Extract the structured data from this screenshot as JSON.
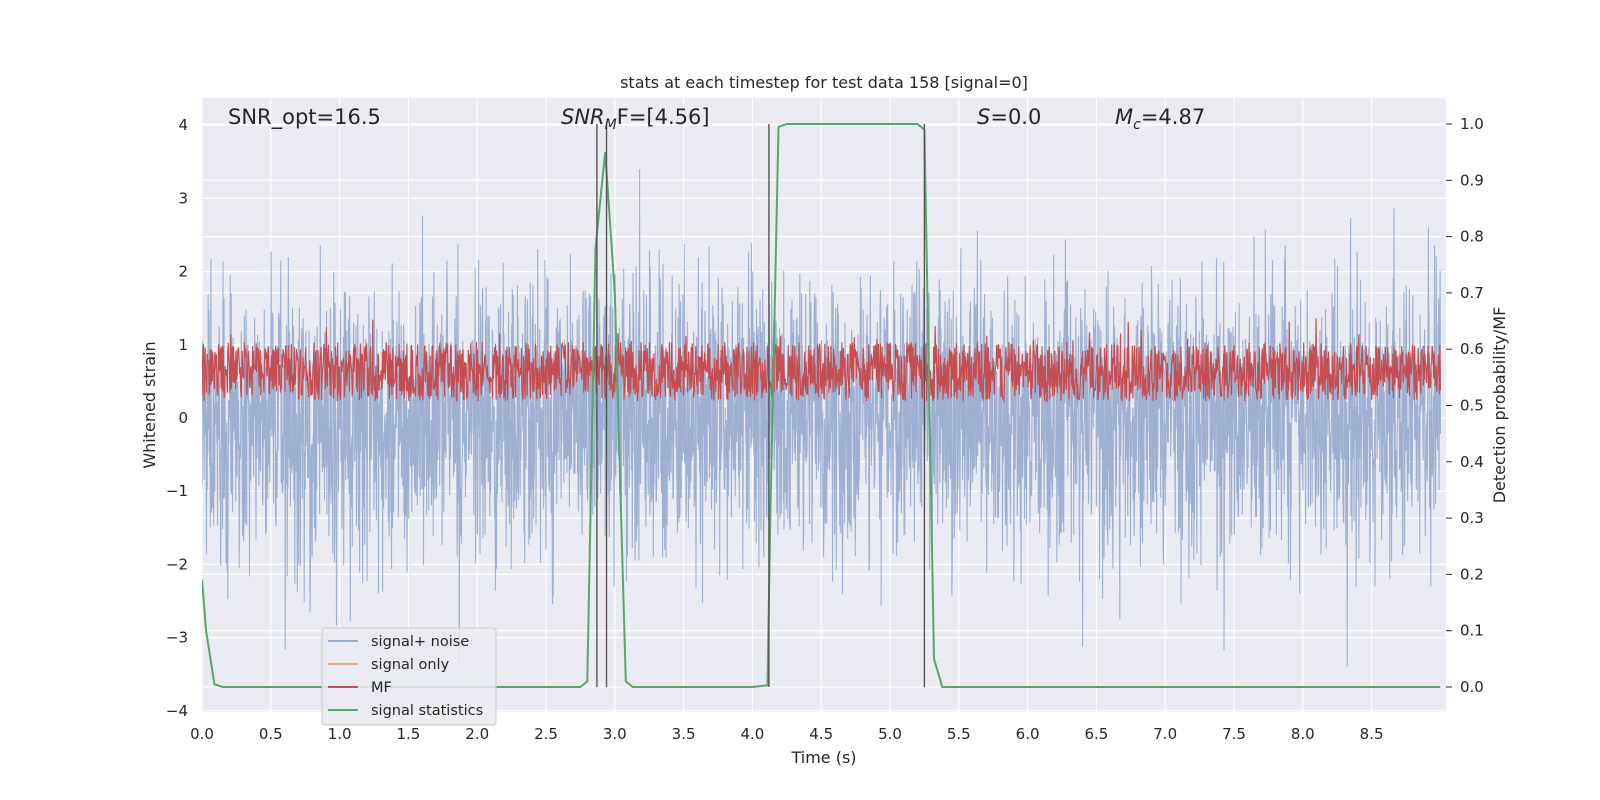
{
  "chart_data": {
    "type": "line",
    "title": "stats at each timestep for test data 158 [signal=0]",
    "xlabel": "Time (s)",
    "ylabel": "Whitened strain",
    "y2label": "Detection probability/MF",
    "xlim": [
      0.0,
      9.0
    ],
    "ylim": [
      -4.25,
      4.35
    ],
    "y2lim": [
      -0.045,
      1.045
    ],
    "x_ticks": [
      "0.0",
      "0.5",
      "1.0",
      "1.5",
      "2.0",
      "2.5",
      "3.0",
      "3.5",
      "4.0",
      "4.5",
      "5.0",
      "5.5",
      "6.0",
      "6.5",
      "7.0",
      "7.5",
      "8.0",
      "8.5"
    ],
    "y_ticks": [
      "4",
      "3",
      "2",
      "1",
      "0",
      "−1",
      "−2",
      "−3",
      "−4"
    ],
    "y2_ticks": [
      "1.0",
      "0.9",
      "0.8",
      "0.7",
      "0.6",
      "0.5",
      "0.4",
      "0.3",
      "0.2",
      "0.1",
      "0.0"
    ],
    "grid": true,
    "legend_position": "lower-left",
    "annotations": {
      "snr_opt": "SNR_opt=16.5",
      "snr_mf_main": "SNR",
      "snr_mf_sub": "M",
      "snr_mf_rest": "F=[4.56]",
      "s_main": "S",
      "s_rest": "=0.0",
      "mc_main": "M",
      "mc_sub": "c",
      "mc_rest": "=4.87"
    },
    "series": [
      {
        "name": "signal+ noise",
        "color": "#9aadd0",
        "axis": "left",
        "description_range": [
          -3.4,
          3.4
        ],
        "typical_envelope": [
          -1.9,
          2.4
        ]
      },
      {
        "name": "signal only",
        "color": "#eaa989",
        "axis": "left",
        "values": []
      },
      {
        "name": "MF",
        "color": "#c44e52",
        "axis": "right",
        "typical_range": [
          0.49,
          0.63
        ]
      },
      {
        "name": "signal statistics",
        "color": "#55a868",
        "axis": "right",
        "x": [
          0.0,
          0.03,
          0.09,
          0.15,
          0.5,
          1.0,
          1.5,
          2.0,
          2.5,
          2.75,
          2.8,
          2.86,
          2.93,
          3.0,
          3.08,
          3.13,
          3.5,
          4.0,
          4.11,
          4.13,
          4.19,
          4.25,
          4.5,
          5.0,
          5.2,
          5.25,
          5.32,
          5.38,
          6.0,
          7.0,
          8.0,
          9.0
        ],
        "y": [
          0.19,
          0.1,
          0.005,
          0.0,
          0.0,
          0.0,
          0.0,
          0.0,
          0.0,
          0.0,
          0.01,
          0.78,
          0.95,
          0.7,
          0.01,
          0.0,
          0.0,
          0.0,
          0.003,
          0.3,
          0.995,
          1.0,
          1.0,
          1.0,
          1.0,
          0.99,
          0.05,
          0.0,
          0.0,
          0.0,
          0.0,
          0.0
        ]
      }
    ],
    "vertical_markers_x": [
      2.87,
      2.94,
      4.12,
      5.25
    ]
  },
  "colors": {
    "background": "#eaeaf2",
    "grid": "#ffffff",
    "marker": "#555555"
  }
}
